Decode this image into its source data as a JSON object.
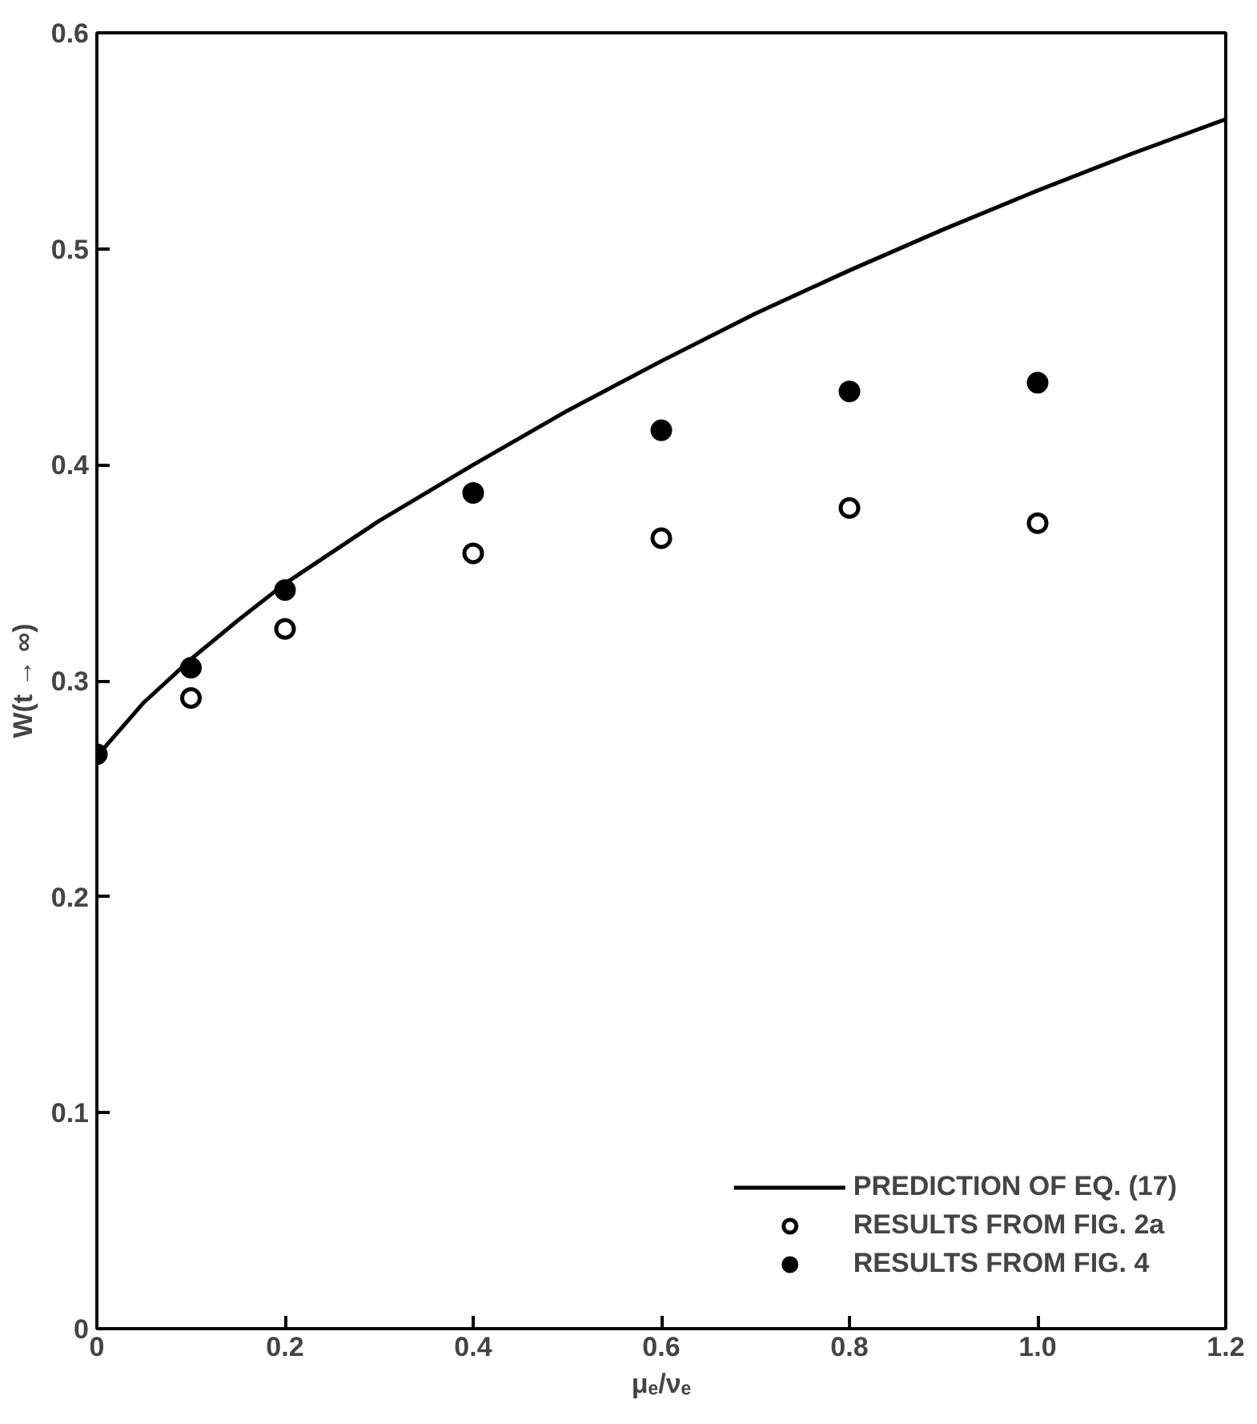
{
  "chart_data": {
    "type": "scatter",
    "xlabel": "μₑ/νₑ",
    "ylabel": "W(t → ∞)",
    "xlim": [
      0,
      1.2
    ],
    "ylim": [
      0,
      0.6
    ],
    "xticks": [
      0,
      0.2,
      0.4,
      {
        "value": 0.6,
        "label": "0.6"
      },
      0.8,
      {
        "value": 1.0,
        "label": "1.0"
      },
      1.2
    ],
    "yticks": [
      0,
      0.1,
      0.2,
      0.3,
      0.4,
      0.5,
      0.6
    ],
    "grid": false,
    "legend": "bottom right",
    "series": [
      {
        "name": "PREDICTION OF EQ. (17)",
        "type": "line",
        "color": "#000000",
        "marker": "none",
        "line_style": "solid",
        "x": [
          0,
          0.05,
          0.1,
          0.15,
          0.2,
          0.3,
          0.4,
          0.5,
          0.6,
          0.7,
          0.8,
          0.9,
          1.0,
          1.1,
          1.2
        ],
        "values": [
          0.265,
          0.29,
          0.31,
          0.328,
          0.345,
          0.374,
          0.4,
          0.425,
          0.448,
          0.47,
          0.49,
          0.509,
          0.527,
          0.544,
          0.56
        ]
      },
      {
        "name": "RESULTS FROM FIG. 2a",
        "color": "#ffffff",
        "marker": "circle",
        "x": [
          0.1,
          0.2,
          0.4,
          0.6,
          0.8,
          1.0
        ],
        "values": [
          0.292,
          0.324,
          0.359,
          0.366,
          0.38,
          0.373
        ]
      },
      {
        "name": "RESULTS FROM FIG. 4",
        "color": "#000000",
        "marker": "circle",
        "x": [
          0,
          0.1,
          0.2,
          0.4,
          0.6,
          0.8,
          1.0
        ],
        "values": [
          0.266,
          0.306,
          0.342,
          0.387,
          0.416,
          0.434,
          0.438
        ]
      }
    ]
  }
}
